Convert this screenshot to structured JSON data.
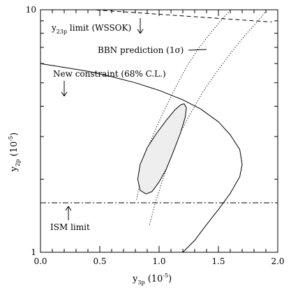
{
  "chart_data": {
    "type": "line",
    "xlabel": "y",
    "xlabel_sub": "3p",
    "xlabel_unit_open": " (10",
    "xlabel_unit_exp": "-5",
    "xlabel_unit_close": ")",
    "ylabel": "y",
    "ylabel_sub": "2p",
    "ylabel_unit_open": " (10",
    "ylabel_unit_exp": "-5",
    "ylabel_unit_close": ")",
    "xlim": [
      0.0,
      2.0
    ],
    "ylim": [
      1,
      10
    ],
    "yscale": "log",
    "x_ticks_major": [
      "0.0",
      "0.5",
      "1.0",
      "1.5",
      "2.0"
    ],
    "x_ticks_major_values": [
      0.0,
      0.5,
      1.0,
      1.5,
      2.0
    ],
    "y_tick_labels": [
      "1",
      "10"
    ],
    "y_tick_label_values": [
      1,
      10
    ],
    "grid": false,
    "annotations": {
      "wssok": {
        "prefix": "y",
        "sub": "23p",
        "suffix": " limit (WSSOK)"
      },
      "bbn": {
        "text": "BBN prediction (1σ)"
      },
      "new_constraint": {
        "text": "New constraint (68% C.L.)"
      },
      "ism": {
        "text": "ISM limit"
      }
    },
    "series": [
      {
        "style": "dashed",
        "x": [
          0.0,
          1.95
        ],
        "y": [
          10.35,
          8.9
        ]
      },
      {
        "style": "dash-dot",
        "x": [
          0.0,
          2.0
        ],
        "y": [
          1.6,
          1.6
        ]
      },
      {
        "style": "solid",
        "x": [
          0.0,
          0.2,
          0.4,
          0.6,
          0.8,
          1.0,
          1.2,
          1.35,
          1.5,
          1.6,
          1.68,
          1.7,
          1.68,
          1.6,
          1.5,
          1.4,
          1.3,
          1.2
        ],
        "y": [
          6.0,
          5.78,
          5.58,
          5.3,
          5.0,
          4.65,
          4.25,
          3.9,
          3.45,
          3.05,
          2.65,
          2.3,
          2.05,
          1.75,
          1.5,
          1.3,
          1.12,
          1.0
        ]
      },
      {
        "style": "dotted",
        "x": [
          0.81,
          0.84,
          0.87,
          0.92,
          0.98,
          1.06,
          1.14,
          1.23,
          1.33,
          1.44,
          1.56,
          1.64
        ],
        "y": [
          1.65,
          1.95,
          2.3,
          2.8,
          3.3,
          4.0,
          4.8,
          5.8,
          6.9,
          8.1,
          9.5,
          10.35
        ]
      },
      {
        "style": "dotted",
        "x": [
          0.92,
          0.96,
          1.01,
          1.06,
          1.12,
          1.19,
          1.28,
          1.37,
          1.48,
          1.6,
          1.73,
          1.86,
          1.93
        ],
        "y": [
          1.3,
          1.55,
          1.85,
          2.2,
          2.65,
          3.2,
          3.85,
          4.6,
          5.5,
          6.6,
          7.9,
          9.3,
          10.35
        ]
      },
      {
        "style": "filled-ellipse",
        "x": [
          0.84,
          0.82,
          0.84,
          0.9,
          0.98,
          1.06,
          1.13,
          1.18,
          1.21,
          1.23,
          1.22,
          1.18,
          1.12,
          1.06,
          1.0,
          0.94,
          0.89,
          0.84
        ],
        "y": [
          1.8,
          2.0,
          2.3,
          2.7,
          3.1,
          3.5,
          3.85,
          4.05,
          4.1,
          3.95,
          3.6,
          3.1,
          2.6,
          2.2,
          1.95,
          1.78,
          1.74,
          1.8
        ]
      }
    ]
  }
}
